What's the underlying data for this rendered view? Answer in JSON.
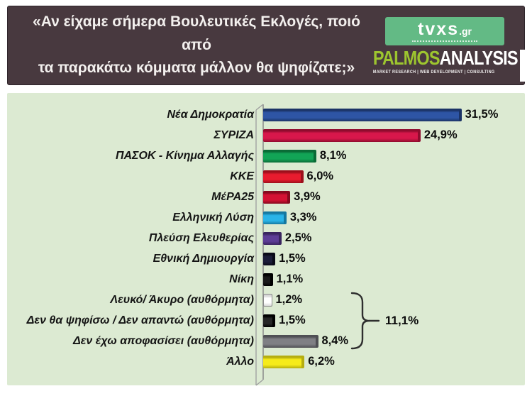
{
  "header": {
    "title_line1": "«Αν είχαμε σήμερα Βουλευτικές Εκλογές, ποιό από",
    "title_line2": "τα παρακάτω κόμματα μάλλον θα ψηφίζατε;»",
    "colors": {
      "background": "#48393f",
      "text": "#f3f0ee"
    },
    "tvxs_logo": {
      "text": "tvxs",
      "suffix": ".gr",
      "box_color": "#63ba85"
    },
    "palmos_logo": {
      "part1": "PALMOS",
      "part2": "ANALYSIS",
      "part1_color": "#9dc52f",
      "part2_color": "#ffffff",
      "tagline": "MARKET RESEARCH | WEB DEVELOPMENT | CONSULTING"
    }
  },
  "panel": {
    "background": "#dcead2"
  },
  "chart_data": {
    "type": "bar",
    "orientation": "horizontal",
    "title": "«Αν είχαμε σήμερα Βουλευτικές Εκλογές, ποιό από τα παρακάτω κόμματα μάλλον θα ψηφίζατε;»",
    "unit": "%",
    "xlim": [
      0,
      35
    ],
    "grid": false,
    "legend": false,
    "categories": [
      "Νέα Δημοκρατία",
      "ΣΥΡΙΖΑ",
      "ΠΑΣΟΚ - Κίνημα Αλλαγής",
      "ΚΚΕ",
      "ΜέΡΑ25",
      "Ελληνική Λύση",
      "Πλεύση Ελευθερίας",
      "Εθνική Δημιουργία",
      "Νίκη",
      "Λευκό/ Άκυρο (αυθόρμητα)",
      "Δεν θα ψηφίσω / Δεν απαντώ (αυθόρμητα)",
      "Δεν έχω αποφασίσει (αυθόρμητα)",
      "Άλλο"
    ],
    "values": [
      31.5,
      24.9,
      8.1,
      6.0,
      3.9,
      3.3,
      2.5,
      1.5,
      1.1,
      1.2,
      1.5,
      8.4,
      6.2
    ],
    "bars": [
      {
        "label": "Νέα Δημοκρατία",
        "value": 31.5,
        "display": "31,5%",
        "color": "#2e55a5",
        "dark": "#1b3366"
      },
      {
        "label": "ΣΥΡΙΖΑ",
        "value": 24.9,
        "display": "24,9%",
        "color": "#d8174b",
        "dark": "#8f0c2e"
      },
      {
        "label": "ΠΑΣΟΚ - Κίνημα Αλλαγής",
        "value": 8.1,
        "display": "8,1%",
        "color": "#12a456",
        "dark": "#0a6b36"
      },
      {
        "label": "ΚΚΕ",
        "value": 6.0,
        "display": "6,0%",
        "color": "#e81c2e",
        "dark": "#9c101c"
      },
      {
        "label": "ΜέΡΑ25",
        "value": 3.9,
        "display": "3,9%",
        "color": "#d31233",
        "dark": "#860a1e"
      },
      {
        "label": "Ελληνική Λύση",
        "value": 3.3,
        "display": "3,3%",
        "color": "#2ab4e8",
        "dark": "#1578a0"
      },
      {
        "label": "Πλεύση Ελευθερίας",
        "value": 2.5,
        "display": "2,5%",
        "color": "#5d3d96",
        "dark": "#39245e"
      },
      {
        "label": "Εθνική Δημιουργία",
        "value": 1.5,
        "display": "1,5%",
        "color": "#1c1d3a",
        "dark": "#0a0a18"
      },
      {
        "label": "Νίκη",
        "value": 1.1,
        "display": "1,1%",
        "color": "#1a1a1a",
        "dark": "#000000"
      },
      {
        "label": "Λευκό/ Άκυρο (αυθόρμητα)",
        "value": 1.2,
        "display": "1,2%",
        "color": "#ffffff",
        "dark": "#d8d8d8",
        "outline": "#8a8a8a"
      },
      {
        "label": "Δεν θα ψηφίσω / Δεν απαντώ (αυθόρμητα)",
        "value": 1.5,
        "display": "1,5%",
        "color": "#262626",
        "dark": "#000000"
      },
      {
        "label": "Δεν έχω αποφασίσει (αυθόρμητα)",
        "value": 8.4,
        "display": "8,4%",
        "color": "#7f7f84",
        "dark": "#4f4f54"
      },
      {
        "label": "Άλλο",
        "value": 6.2,
        "display": "6,2%",
        "color": "#f6eb1a",
        "dark": "#b5ad10"
      }
    ],
    "annotation": {
      "label": "11,1%",
      "total_of": [
        "Λευκό/ Άκυρο (αυθόρμητα)",
        "Δεν θα ψηφίσω / Δεν απαντώ (αυθόρμητα)",
        "Δεν έχω αποφασίσει (αυθόρμητα)"
      ]
    }
  }
}
